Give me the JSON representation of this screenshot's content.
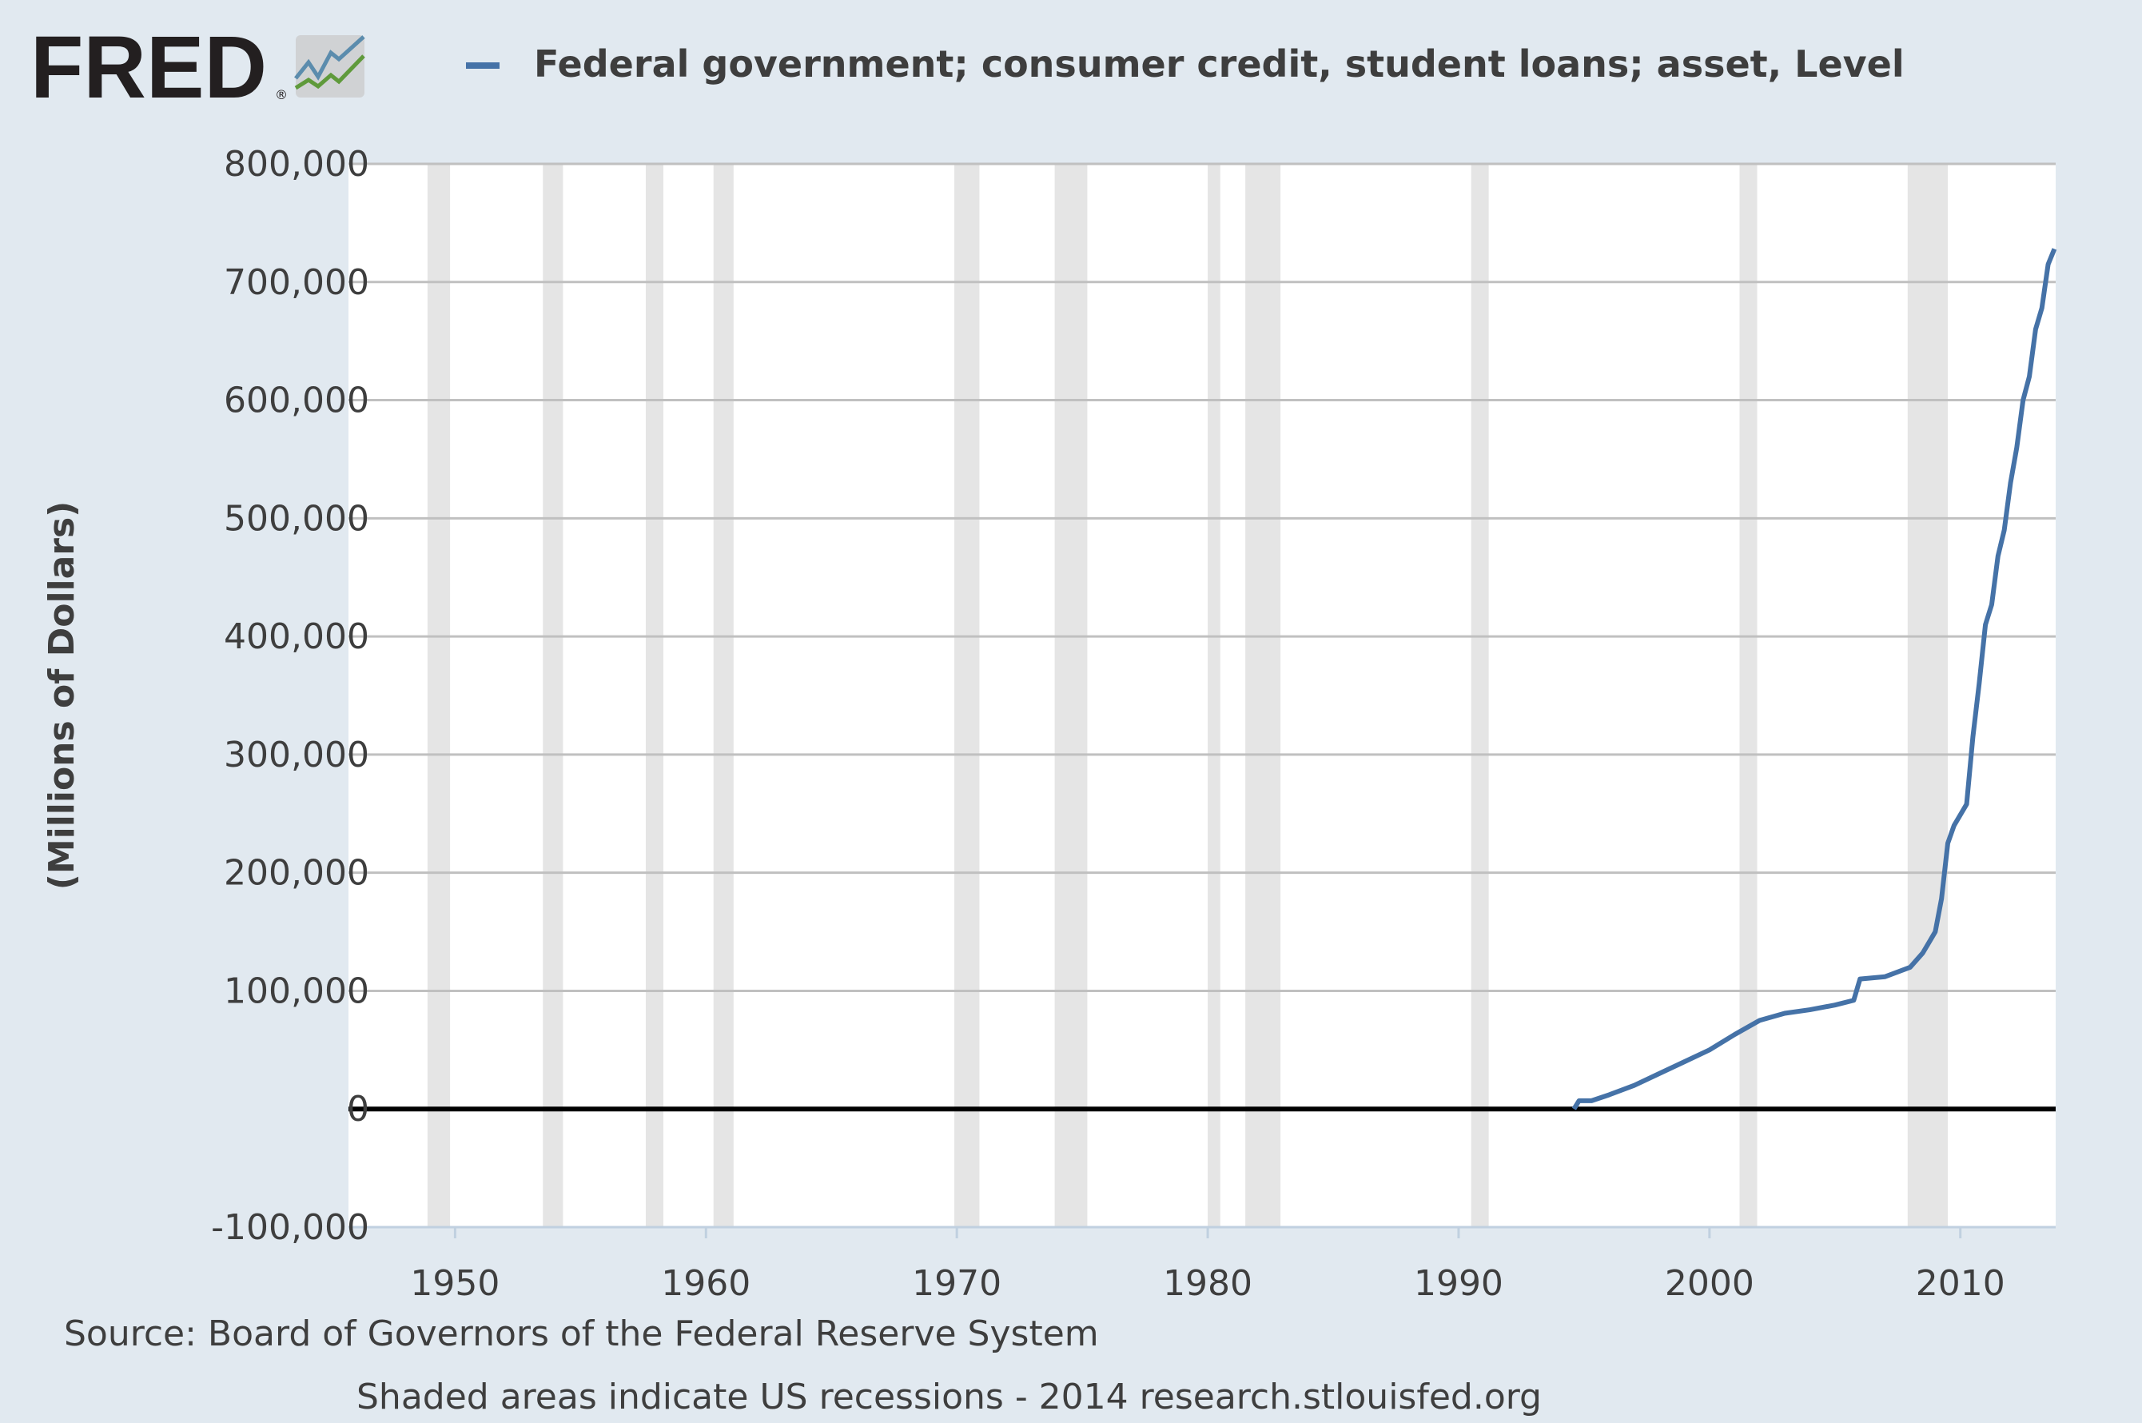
{
  "logo": {
    "text": "FRED",
    "registered": "®"
  },
  "colors": {
    "series": "#4572a7",
    "recession": "#e5e5e5",
    "grid": "#c0c0c0",
    "background": "#e1e9f0",
    "plot": "#ffffff",
    "zero_line": "#000000"
  },
  "chart_data": {
    "type": "line",
    "title": "",
    "legend": [
      "Federal government; consumer credit, student loans; asset, Level"
    ],
    "legend_placement": "top",
    "xlabel": "",
    "ylabel": "(Millions of Dollars)",
    "xlim": [
      1945.75,
      2013.8
    ],
    "ylim": [
      -100000,
      800000
    ],
    "grid": true,
    "x_ticks": [
      "1950",
      "1960",
      "1970",
      "1980",
      "1990",
      "2000",
      "2010"
    ],
    "y_ticks": [
      "800,000",
      "700,000",
      "600,000",
      "500,000",
      "400,000",
      "300,000",
      "200,000",
      "100,000",
      "0",
      "-100,000"
    ],
    "y_tick_values": [
      800000,
      700000,
      600000,
      500000,
      400000,
      300000,
      200000,
      100000,
      0,
      -100000
    ],
    "recessions": [
      [
        1948.9,
        1949.8
      ],
      [
        1953.5,
        1954.3
      ],
      [
        1957.6,
        1958.3
      ],
      [
        1960.3,
        1961.1
      ],
      [
        1969.9,
        1970.9
      ],
      [
        1973.9,
        1975.2
      ],
      [
        1980.0,
        1980.5
      ],
      [
        1981.5,
        1982.9
      ],
      [
        1990.5,
        1991.2
      ],
      [
        2001.2,
        2001.9
      ],
      [
        2007.9,
        2009.5
      ]
    ],
    "series": [
      {
        "name": "Federal government; consumer credit, student loans; asset, Level",
        "x": [
          1945.75,
          1994.6,
          1994.8,
          1995.3,
          1996,
          1997,
          1998,
          1999,
          2000,
          2001,
          2002,
          2003,
          2004,
          2005,
          2005.75,
          2006,
          2007,
          2008,
          2008.5,
          2009,
          2009.25,
          2009.5,
          2009.75,
          2010.25,
          2010.5,
          2010.75,
          2011,
          2011.25,
          2011.5,
          2011.75,
          2012,
          2012.25,
          2012.5,
          2012.75,
          2013,
          2013.25,
          2013.5,
          2013.75
        ],
        "values": [
          0,
          0,
          7000,
          7000,
          12000,
          20000,
          30000,
          40000,
          50000,
          63000,
          75000,
          81000,
          84000,
          88000,
          92000,
          110000,
          112000,
          120000,
          132000,
          150000,
          178000,
          225000,
          240000,
          258000,
          315000,
          360000,
          410000,
          427000,
          468000,
          490000,
          530000,
          560000,
          600000,
          620000,
          660000,
          678000,
          715000,
          728000
        ]
      }
    ]
  },
  "source": "Source: Board of Governors of the Federal Reserve System",
  "footer": "Shaded areas indicate US recessions - 2014 research.stlouisfed.org"
}
